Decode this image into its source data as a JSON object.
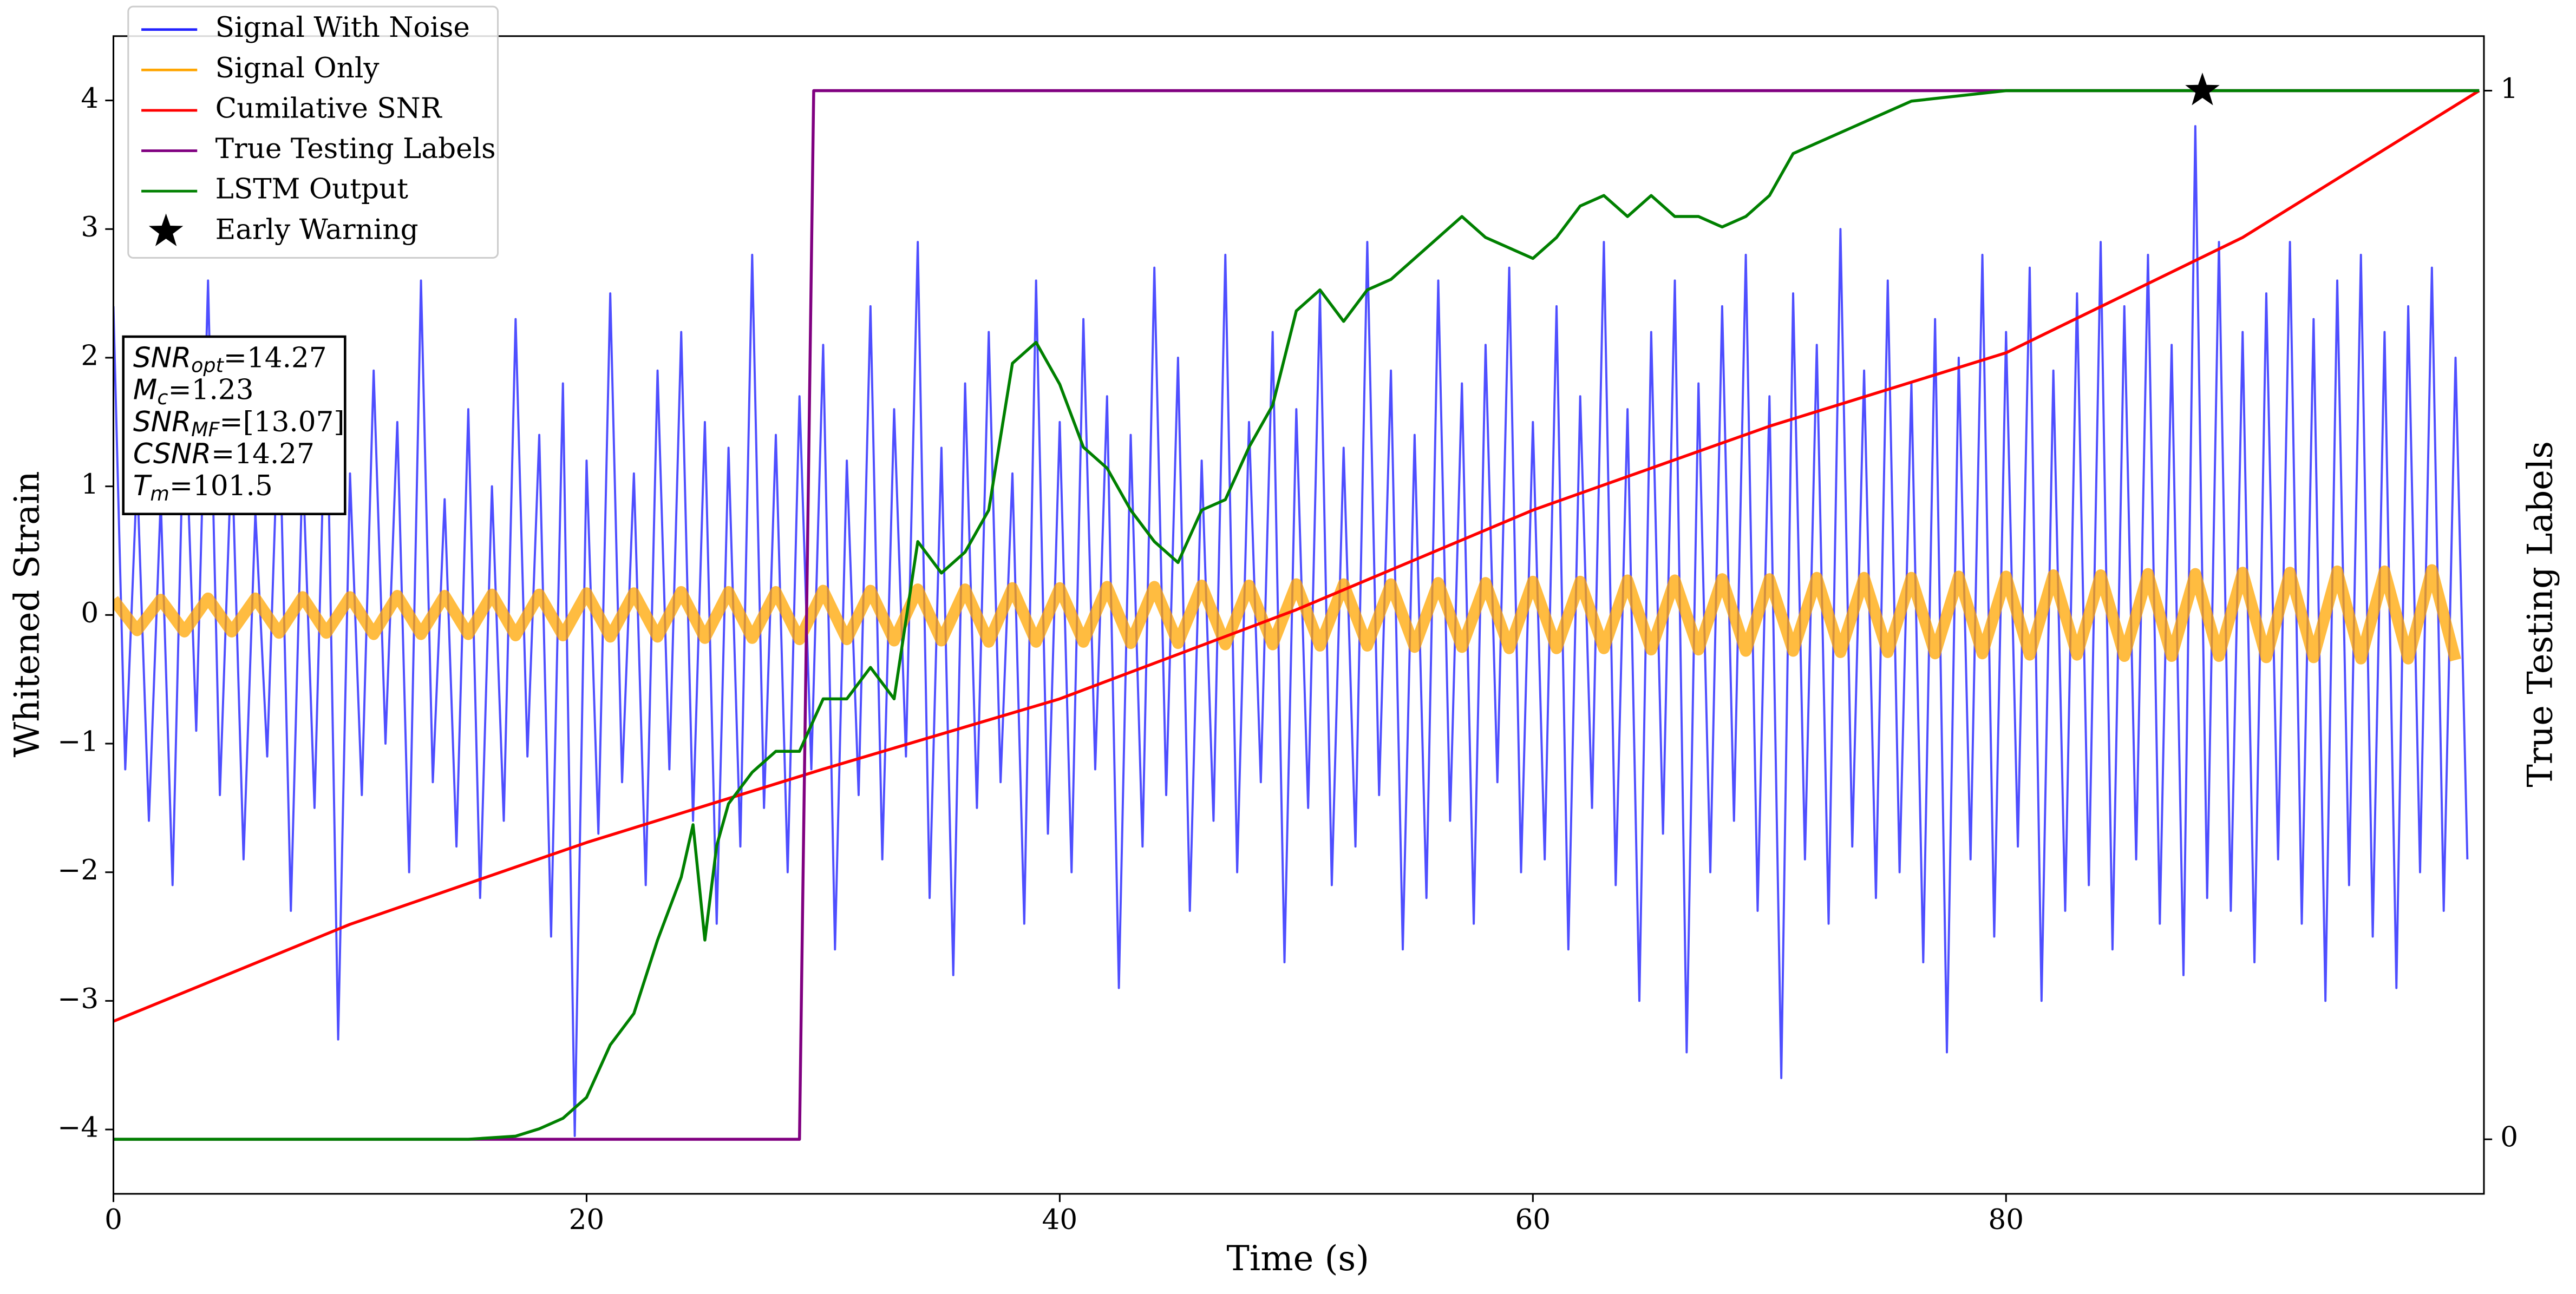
{
  "chart_data": {
    "type": "line",
    "xlabel": "Time (s)",
    "ylabel": "Whitened Strain",
    "y2label": "True Testing Labels",
    "xlim": [
      0,
      100.2
    ],
    "ylim": [
      -4.5,
      4.5
    ],
    "y2lim": [
      -0.052,
      1.052
    ],
    "xticks": [
      0,
      20,
      40,
      60,
      80
    ],
    "yticks": [
      {
        "value": -4,
        "label": "−4"
      },
      {
        "value": -3,
        "label": "−3"
      },
      {
        "value": -2,
        "label": "−2"
      },
      {
        "value": -1,
        "label": "−1"
      },
      0,
      1,
      2,
      3,
      4
    ],
    "y2ticks": [
      0,
      1
    ],
    "legend": "upper left",
    "x": [
      0,
      0.5,
      1,
      1.5,
      2,
      2.5,
      3,
      3.5,
      4,
      4.5,
      5,
      5.5,
      6,
      6.5,
      7,
      7.5,
      8,
      8.5,
      9,
      9.5,
      10,
      10.5,
      11,
      11.5,
      12,
      12.5,
      13,
      13.5,
      14,
      14.5,
      15,
      15.5,
      16,
      16.5,
      17,
      17.5,
      18,
      18.5,
      19,
      19.5,
      20,
      20.5,
      21,
      21.5,
      22,
      22.5,
      23,
      23.5,
      24,
      24.5,
      25,
      25.5,
      26,
      26.5,
      27,
      27.5,
      28,
      28.5,
      29,
      29.5,
      30,
      30.5,
      31,
      31.5,
      32,
      32.5,
      33,
      33.5,
      34,
      34.5,
      35,
      35.5,
      36,
      36.5,
      37,
      37.5,
      38,
      38.5,
      39,
      39.5,
      40,
      40.5,
      41,
      41.5,
      42,
      42.5,
      43,
      43.5,
      44,
      44.5,
      45,
      45.5,
      46,
      46.5,
      47,
      47.5,
      48,
      48.5,
      49,
      49.5,
      50,
      50.5,
      51,
      51.5,
      52,
      52.5,
      53,
      53.5,
      54,
      54.5,
      55,
      55.5,
      56,
      56.5,
      57,
      57.5,
      58,
      58.5,
      59,
      59.5,
      60,
      60.5,
      61,
      61.5,
      62,
      62.5,
      63,
      63.5,
      64,
      64.5,
      65,
      65.5,
      66,
      66.5,
      67,
      67.5,
      68,
      68.5,
      69,
      69.5,
      70,
      70.5,
      71,
      71.5,
      72,
      72.5,
      73,
      73.5,
      74,
      74.5,
      75,
      75.5,
      76,
      76.5,
      77,
      77.5,
      78,
      78.5,
      79,
      79.5,
      80,
      80.5,
      81,
      81.5,
      82,
      82.5,
      83,
      83.5,
      84,
      84.5,
      85,
      85.5,
      86,
      86.5,
      87,
      87.5,
      88,
      88.5,
      89,
      89.5,
      90,
      90.5,
      91,
      91.5,
      92,
      92.5,
      93,
      93.5,
      94,
      94.5,
      95,
      95.5,
      96,
      96.5,
      97,
      97.5,
      98,
      98.5,
      99,
      99.5
    ],
    "series": [
      {
        "name": "Signal With Noise",
        "color": "#2222ff",
        "values": [
          2.4,
          -1.2,
          1.1,
          -1.6,
          0.9,
          -2.1,
          1.8,
          -0.9,
          2.6,
          -1.4,
          1.3,
          -1.9,
          0.8,
          -1.1,
          1.7,
          -2.3,
          1.2,
          -1.5,
          2.0,
          -3.3,
          1.1,
          -1.4,
          1.9,
          -1.0,
          1.5,
          -2.0,
          2.6,
          -1.3,
          0.9,
          -1.8,
          1.6,
          -2.2,
          1.0,
          -1.6,
          2.3,
          -1.1,
          1.4,
          -2.5,
          1.8,
          -4.05,
          1.2,
          -1.7,
          2.5,
          -1.3,
          1.1,
          -2.1,
          1.9,
          -1.2,
          2.2,
          -1.6,
          1.5,
          -2.4,
          1.3,
          -1.8,
          2.8,
          -1.5,
          1.4,
          -2.0,
          1.7,
          -1.2,
          2.1,
          -2.6,
          1.2,
          -1.4,
          2.4,
          -1.9,
          1.6,
          -1.1,
          2.9,
          -2.2,
          1.3,
          -2.8,
          1.8,
          -1.5,
          2.2,
          -1.3,
          1.1,
          -2.4,
          2.6,
          -1.7,
          1.5,
          -2.0,
          2.3,
          -1.2,
          1.7,
          -2.9,
          1.4,
          -1.8,
          2.7,
          -1.4,
          2.0,
          -2.3,
          1.2,
          -1.6,
          2.8,
          -2.0,
          1.5,
          -1.3,
          2.2,
          -2.7,
          1.6,
          -1.5,
          2.5,
          -2.1,
          1.3,
          -1.8,
          2.9,
          -1.4,
          1.9,
          -2.6,
          1.4,
          -2.2,
          2.6,
          -1.6,
          1.8,
          -2.4,
          2.1,
          -1.3,
          2.7,
          -2.0,
          1.5,
          -1.9,
          2.4,
          -2.6,
          1.7,
          -1.5,
          2.9,
          -2.1,
          1.6,
          -3.0,
          2.2,
          -1.7,
          2.6,
          -3.4,
          1.8,
          -2.0,
          2.4,
          -1.6,
          2.8,
          -2.3,
          1.7,
          -3.6,
          2.5,
          -1.9,
          2.1,
          -2.4,
          3.0,
          -1.8,
          1.9,
          -2.2,
          2.6,
          -2.0,
          1.8,
          -2.7,
          2.3,
          -3.4,
          2.0,
          -1.9,
          2.8,
          -2.5,
          2.2,
          -1.8,
          2.7,
          -3.0,
          1.9,
          -2.3,
          2.5,
          -2.1,
          2.9,
          -2.6,
          2.4,
          -1.9,
          2.8,
          -2.4,
          2.1,
          -2.8,
          3.8,
          -2.2,
          2.9,
          -2.3,
          2.2,
          -2.7,
          2.5,
          -1.9,
          2.9,
          -2.4,
          2.3,
          -3.0,
          2.6,
          -2.1,
          2.8,
          -2.5,
          2.2,
          -2.9,
          2.4,
          -2.0,
          2.7,
          -2.3,
          2.0,
          -1.9
        ]
      },
      {
        "name": "Signal Only",
        "color": "#ffa500",
        "x": [
          0,
          1,
          2,
          3,
          4,
          5,
          6,
          7,
          8,
          9,
          10,
          11,
          12,
          13,
          14,
          15,
          16,
          17,
          18,
          19,
          20,
          21,
          22,
          23,
          24,
          25,
          26,
          27,
          28,
          29,
          30,
          31,
          32,
          33,
          34,
          35,
          36,
          37,
          38,
          39,
          40,
          41,
          42,
          43,
          44,
          45,
          46,
          47,
          48,
          49,
          50,
          51,
          52,
          53,
          54,
          55,
          56,
          57,
          58,
          59,
          60,
          61,
          62,
          63,
          64,
          65,
          66,
          67,
          68,
          69,
          70,
          71,
          72,
          73,
          74,
          75,
          76,
          77,
          78,
          79,
          80,
          81,
          82,
          83,
          84,
          85,
          86,
          87,
          88,
          89,
          90,
          91,
          92,
          93,
          94,
          95,
          96,
          97,
          98,
          99
        ],
        "values": [
          0.12,
          -0.12,
          0.12,
          -0.13,
          0.13,
          -0.13,
          0.13,
          -0.14,
          0.14,
          -0.14,
          0.14,
          -0.15,
          0.15,
          -0.15,
          0.15,
          -0.15,
          0.16,
          -0.16,
          0.16,
          -0.16,
          0.17,
          -0.17,
          0.17,
          -0.17,
          0.18,
          -0.18,
          0.18,
          -0.18,
          0.18,
          -0.19,
          0.19,
          -0.19,
          0.19,
          -0.2,
          0.2,
          -0.2,
          0.2,
          -0.21,
          0.21,
          -0.21,
          0.21,
          -0.21,
          0.22,
          -0.22,
          0.22,
          -0.22,
          0.23,
          -0.23,
          0.23,
          -0.23,
          0.24,
          -0.24,
          0.24,
          -0.24,
          0.24,
          -0.25,
          0.25,
          -0.25,
          0.25,
          -0.26,
          0.26,
          -0.26,
          0.26,
          -0.26,
          0.27,
          -0.27,
          0.27,
          -0.27,
          0.28,
          -0.28,
          0.28,
          -0.28,
          0.29,
          -0.29,
          0.29,
          -0.29,
          0.29,
          -0.3,
          0.3,
          -0.3,
          0.3,
          -0.31,
          0.31,
          -0.31,
          0.31,
          -0.32,
          0.32,
          -0.32,
          0.32,
          -0.32,
          0.33,
          -0.33,
          0.33,
          -0.33,
          0.34,
          -0.34,
          0.34,
          -0.34,
          0.35,
          -0.35
        ]
      },
      {
        "name": "Cumilative SNR",
        "color": "#ff0000",
        "axis": "y2",
        "x": [
          0,
          10,
          20,
          30,
          40,
          50,
          60,
          70,
          80,
          90,
          100
        ],
        "values": [
          0.1125,
          0.205,
          0.283,
          0.353,
          0.42,
          0.505,
          0.6,
          0.68,
          0.75,
          0.86,
          1.0
        ]
      },
      {
        "name": "True Testing Labels",
        "color": "#800080",
        "axis": "y2",
        "x": [
          0,
          29,
          29.6,
          100
        ],
        "values": [
          0,
          0,
          1,
          1
        ]
      },
      {
        "name": "LSTM Output",
        "color": "#008000",
        "axis": "y2",
        "x": [
          0,
          15,
          17,
          18,
          19,
          20,
          21,
          22,
          23,
          24,
          24.5,
          25,
          25.5,
          26,
          27,
          28,
          29,
          30,
          31,
          32,
          33,
          34,
          35,
          36,
          37,
          38,
          39,
          40,
          41,
          42,
          43,
          44,
          45,
          46,
          47,
          48,
          49,
          50,
          51,
          52,
          53,
          54,
          55,
          56,
          57,
          58,
          59,
          60,
          61,
          62,
          63,
          64,
          65,
          66,
          67,
          68,
          69,
          70,
          71,
          72,
          74,
          76,
          80,
          100
        ],
        "values": [
          0,
          0,
          0.003,
          0.01,
          0.02,
          0.04,
          0.09,
          0.12,
          0.19,
          0.25,
          0.3,
          0.19,
          0.28,
          0.32,
          0.35,
          0.37,
          0.37,
          0.42,
          0.42,
          0.45,
          0.42,
          0.57,
          0.54,
          0.56,
          0.6,
          0.74,
          0.76,
          0.72,
          0.66,
          0.64,
          0.6,
          0.57,
          0.55,
          0.6,
          0.61,
          0.66,
          0.7,
          0.79,
          0.81,
          0.78,
          0.81,
          0.82,
          0.84,
          0.86,
          0.88,
          0.86,
          0.85,
          0.84,
          0.86,
          0.89,
          0.9,
          0.88,
          0.9,
          0.88,
          0.88,
          0.87,
          0.88,
          0.9,
          0.94,
          0.95,
          0.97,
          0.99,
          1.0,
          1.0
        ]
      },
      {
        "name": "Early Warning",
        "type": "scatter",
        "marker": "star",
        "color": "#000000",
        "axis": "y2",
        "x": [
          88.3
        ],
        "values": [
          1.0
        ]
      }
    ],
    "annotation": [
      {
        "text": "SNR",
        "sub": "opt",
        "suffix": "=14.27"
      },
      {
        "text": "M",
        "sub": "c",
        "suffix": "=1.23"
      },
      {
        "text": "SNR",
        "sub": "MF",
        "suffix": "=[13.07]"
      },
      {
        "text": "CSNR",
        "suffix": "=14.27"
      },
      {
        "text": "T",
        "sub": "m",
        "suffix": "=101.5"
      }
    ]
  }
}
